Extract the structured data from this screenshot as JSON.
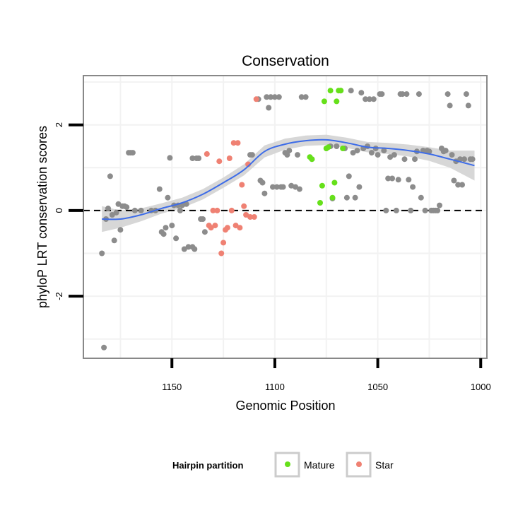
{
  "chart_data": {
    "type": "scatter",
    "title": "Conservation",
    "xlabel": "Genomic Position",
    "ylabel": "phyloP LRT conservation scores",
    "x_reversed": true,
    "xlim": [
      1193,
      997
    ],
    "ylim": [
      -3.45,
      3.15
    ],
    "x_ticks": [
      1150,
      1100,
      1050,
      1000
    ],
    "y_ticks": [
      -2,
      0,
      2
    ],
    "reference_line": {
      "y": 0,
      "style": "dashed"
    },
    "legend": {
      "title": "Hairpin partition",
      "position": "bottom",
      "entries": [
        {
          "name": "Mature",
          "color": "#66e01a"
        },
        {
          "name": "Star",
          "color": "#ef8173"
        }
      ]
    },
    "colors": {
      "other": "#8c8c8c",
      "smooth_line": "#3d6ce8",
      "confidence_band": "#d3d3d3",
      "panel_border": "#888888",
      "grid": "#f2f2f2"
    },
    "series": [
      {
        "name": "Other",
        "points": [
          [
            1184,
            -1.0
          ],
          [
            1183,
            -3.2
          ],
          [
            1182,
            -0.2
          ],
          [
            1181,
            0.05
          ],
          [
            1180,
            0.8
          ],
          [
            1179,
            -0.1
          ],
          [
            1178,
            -0.7
          ],
          [
            1177,
            -0.05
          ],
          [
            1176,
            0.15
          ],
          [
            1175,
            -0.45
          ],
          [
            1174,
            0.1
          ],
          [
            1173,
            0.1
          ],
          [
            1172,
            0.08
          ],
          [
            1171,
            1.35
          ],
          [
            1170,
            1.35
          ],
          [
            1169,
            1.35
          ],
          [
            1168,
            0.0
          ],
          [
            1165,
            0.0
          ],
          [
            1160,
            0.0
          ],
          [
            1158,
            0.0
          ],
          [
            1156,
            0.5
          ],
          [
            1155,
            -0.5
          ],
          [
            1154,
            -0.55
          ],
          [
            1153,
            -0.4
          ],
          [
            1152,
            0.3
          ],
          [
            1151,
            1.23
          ],
          [
            1150,
            -0.35
          ],
          [
            1149,
            0.12
          ],
          [
            1148,
            -0.65
          ],
          [
            1147,
            0.12
          ],
          [
            1146,
            0.0
          ],
          [
            1145,
            0.12
          ],
          [
            1144,
            -0.9
          ],
          [
            1143,
            0.15
          ],
          [
            1142,
            -0.85
          ],
          [
            1140,
            -0.85
          ],
          [
            1140,
            1.22
          ],
          [
            1139,
            -0.9
          ],
          [
            1138,
            1.22
          ],
          [
            1137,
            1.22
          ],
          [
            1136,
            -0.2
          ],
          [
            1135,
            -0.2
          ],
          [
            1134,
            -0.5
          ],
          [
            1112,
            1.3
          ],
          [
            1111,
            1.3
          ],
          [
            1108,
            2.6
          ],
          [
            1107,
            0.7
          ],
          [
            1106,
            0.65
          ],
          [
            1105,
            0.4
          ],
          [
            1104,
            2.65
          ],
          [
            1103,
            2.4
          ],
          [
            1102,
            2.65
          ],
          [
            1101,
            0.55
          ],
          [
            1100,
            2.65
          ],
          [
            1099,
            0.55
          ],
          [
            1098,
            2.65
          ],
          [
            1097,
            0.55
          ],
          [
            1096,
            0.55
          ],
          [
            1095,
            1.35
          ],
          [
            1094,
            1.3
          ],
          [
            1093,
            1.4
          ],
          [
            1092,
            0.58
          ],
          [
            1090,
            0.55
          ],
          [
            1089,
            1.3
          ],
          [
            1088,
            0.5
          ],
          [
            1087,
            2.65
          ],
          [
            1085,
            2.65
          ],
          [
            1082,
            1.2
          ],
          [
            1075,
            1.45
          ],
          [
            1073,
            1.5
          ],
          [
            1072,
            0.28
          ],
          [
            1070,
            1.5
          ],
          [
            1068,
            2.8
          ],
          [
            1066,
            1.45
          ],
          [
            1065,
            0.3
          ],
          [
            1064,
            0.8
          ],
          [
            1063,
            2.8
          ],
          [
            1062,
            1.35
          ],
          [
            1061,
            0.3
          ],
          [
            1060,
            1.4
          ],
          [
            1059,
            0.55
          ],
          [
            1058,
            2.75
          ],
          [
            1057,
            1.45
          ],
          [
            1056,
            2.6
          ],
          [
            1055,
            1.5
          ],
          [
            1054,
            2.6
          ],
          [
            1053,
            1.35
          ],
          [
            1052,
            2.6
          ],
          [
            1051,
            1.45
          ],
          [
            1050,
            1.3
          ],
          [
            1049,
            2.72
          ],
          [
            1048,
            2.72
          ],
          [
            1047,
            1.4
          ],
          [
            1046,
            0.0
          ],
          [
            1045,
            0.75
          ],
          [
            1044,
            1.25
          ],
          [
            1043,
            0.75
          ],
          [
            1042,
            1.3
          ],
          [
            1041,
            0.0
          ],
          [
            1040,
            0.72
          ],
          [
            1039,
            2.72
          ],
          [
            1038,
            2.72
          ],
          [
            1037,
            1.2
          ],
          [
            1036,
            2.72
          ],
          [
            1035,
            0.72
          ],
          [
            1034,
            0.0
          ],
          [
            1033,
            0.55
          ],
          [
            1032,
            1.2
          ],
          [
            1031,
            1.38
          ],
          [
            1030,
            2.72
          ],
          [
            1029,
            0.3
          ],
          [
            1028,
            1.4
          ],
          [
            1027,
            0.0
          ],
          [
            1026,
            1.4
          ],
          [
            1025,
            1.38
          ],
          [
            1024,
            0.0
          ],
          [
            1023,
            0.0
          ],
          [
            1022,
            0.0
          ],
          [
            1021,
            0.0
          ],
          [
            1020,
            0.12
          ],
          [
            1019,
            1.45
          ],
          [
            1018,
            1.38
          ],
          [
            1017,
            1.4
          ],
          [
            1016,
            2.72
          ],
          [
            1015,
            2.45
          ],
          [
            1014,
            1.3
          ],
          [
            1013,
            0.7
          ],
          [
            1012,
            1.15
          ],
          [
            1011,
            0.6
          ],
          [
            1010,
            1.2
          ],
          [
            1009,
            0.6
          ],
          [
            1008,
            1.2
          ],
          [
            1007,
            2.72
          ],
          [
            1006,
            2.45
          ],
          [
            1005,
            1.2
          ],
          [
            1004,
            1.2
          ]
        ]
      },
      {
        "name": "Mature",
        "points": [
          [
            1083,
            1.25
          ],
          [
            1082,
            1.2
          ],
          [
            1078,
            0.18
          ],
          [
            1077,
            0.58
          ],
          [
            1076,
            2.55
          ],
          [
            1075,
            1.45
          ],
          [
            1074,
            1.48
          ],
          [
            1073,
            2.8
          ],
          [
            1072,
            0.3
          ],
          [
            1071,
            0.65
          ],
          [
            1070,
            2.55
          ],
          [
            1069,
            2.8
          ],
          [
            1068,
            2.8
          ],
          [
            1067,
            1.45
          ]
        ]
      },
      {
        "name": "Star",
        "points": [
          [
            1133,
            1.32
          ],
          [
            1132,
            -0.35
          ],
          [
            1131,
            -0.4
          ],
          [
            1130,
            0.0
          ],
          [
            1129,
            -0.35
          ],
          [
            1128,
            0.0
          ],
          [
            1127,
            1.15
          ],
          [
            1126,
            -1.0
          ],
          [
            1125,
            -0.75
          ],
          [
            1124,
            -0.45
          ],
          [
            1123,
            -0.4
          ],
          [
            1122,
            1.22
          ],
          [
            1121,
            0.0
          ],
          [
            1120,
            1.58
          ],
          [
            1119,
            -0.35
          ],
          [
            1118,
            1.58
          ],
          [
            1117,
            -0.4
          ],
          [
            1116,
            0.6
          ],
          [
            1115,
            0.1
          ],
          [
            1114,
            -0.1
          ],
          [
            1113,
            1.08
          ],
          [
            1112,
            -0.15
          ],
          [
            1110,
            -0.15
          ],
          [
            1109,
            2.6
          ]
        ]
      }
    ],
    "smooth": {
      "x": [
        1184,
        1175,
        1165,
        1155,
        1145,
        1135,
        1125,
        1115,
        1105,
        1095,
        1085,
        1075,
        1065,
        1055,
        1045,
        1035,
        1025,
        1015,
        1003
      ],
      "y": [
        -0.2,
        -0.2,
        -0.1,
        0.05,
        0.18,
        0.38,
        0.65,
        0.95,
        1.38,
        1.55,
        1.63,
        1.65,
        1.58,
        1.48,
        1.45,
        1.4,
        1.32,
        1.2,
        1.05
      ],
      "se": [
        0.3,
        0.2,
        0.15,
        0.12,
        0.12,
        0.12,
        0.12,
        0.13,
        0.14,
        0.13,
        0.12,
        0.12,
        0.12,
        0.12,
        0.13,
        0.14,
        0.16,
        0.2,
        0.35
      ]
    }
  }
}
